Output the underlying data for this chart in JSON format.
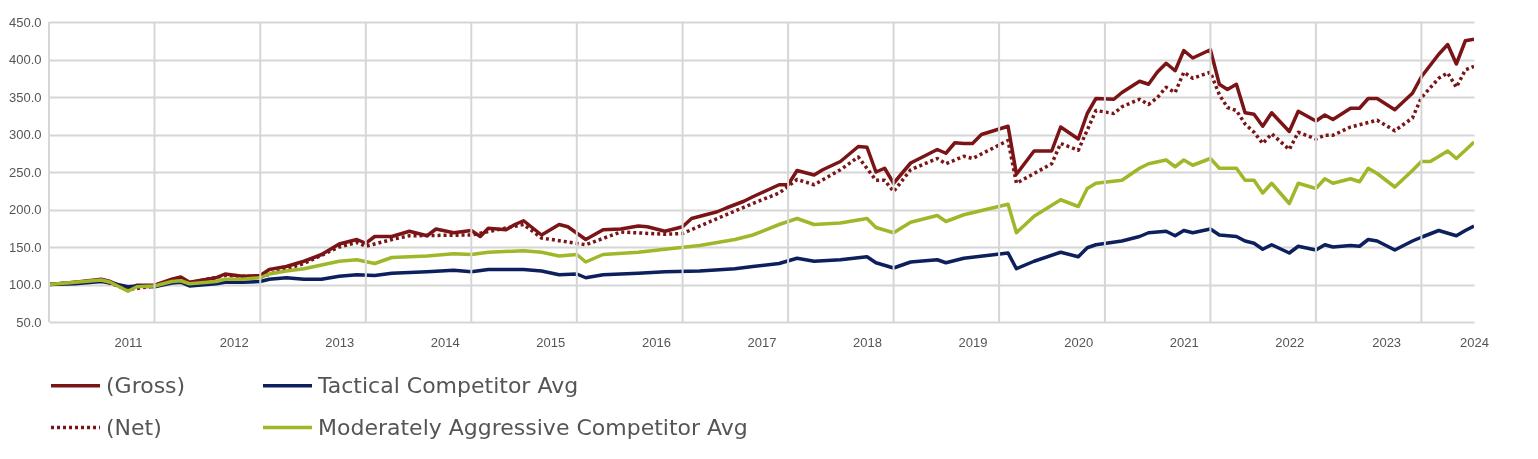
{
  "chart_data": {
    "type": "line",
    "xlim": [
      "2011-01",
      "2024-07"
    ],
    "ylim": [
      50,
      450
    ],
    "yticks": [
      {
        "value": 50,
        "label": "50.0"
      },
      {
        "value": 100,
        "label": "100.0"
      },
      {
        "value": 150,
        "label": "150.0"
      },
      {
        "value": 200,
        "label": "200.0"
      },
      {
        "value": 250,
        "label": "250.0"
      },
      {
        "value": 300,
        "label": "300.0"
      },
      {
        "value": 350,
        "label": "350.0"
      },
      {
        "value": 400,
        "label": "400.0"
      },
      {
        "value": 450,
        "label": "450.0"
      }
    ],
    "xticks": [
      {
        "value": "2011-01",
        "label": null
      },
      {
        "value": "2012-01",
        "label": null
      },
      {
        "value": "2013-01",
        "label": null
      },
      {
        "value": "2014-01",
        "label": null
      },
      {
        "value": "2015-01",
        "label": null
      },
      {
        "value": "2016-01",
        "label": null
      },
      {
        "value": "2017-01",
        "label": null
      },
      {
        "value": "2018-01",
        "label": null
      },
      {
        "value": "2019-01",
        "label": null
      },
      {
        "value": "2020-01",
        "label": null
      },
      {
        "value": "2021-01",
        "label": null
      },
      {
        "value": "2022-01",
        "label": null
      },
      {
        "value": "2023-01",
        "label": null
      },
      {
        "value": "2024-01",
        "label": null
      },
      {
        "value": "2011-10",
        "label": "2011"
      },
      {
        "value": "2012-10",
        "label": "2012"
      },
      {
        "value": "2013-10",
        "label": "2013"
      },
      {
        "value": "2014-10",
        "label": "2014"
      },
      {
        "value": "2015-10",
        "label": "2015"
      },
      {
        "value": "2016-10",
        "label": "2016"
      },
      {
        "value": "2017-10",
        "label": "2017"
      },
      {
        "value": "2018-10",
        "label": "2018"
      },
      {
        "value": "2019-10",
        "label": "2019"
      },
      {
        "value": "2020-10",
        "label": "2020"
      },
      {
        "value": "2021-10",
        "label": "2021"
      },
      {
        "value": "2022-10",
        "label": "2022"
      },
      {
        "value": "2023-09",
        "label": "2023"
      },
      {
        "value": "2024-07",
        "label": "2024"
      }
    ],
    "grid": true,
    "legend": "bottom",
    "marker": "none",
    "series": [
      {
        "name": "(Gross)",
        "color": "#7b1416",
        "line_style": "solid",
        "x": [
          "2011-01",
          "2011-04",
          "2011-07",
          "2011-08",
          "2011-10",
          "2011-11",
          "2012-01",
          "2012-03",
          "2012-04",
          "2012-05",
          "2012-08",
          "2012-09",
          "2012-11",
          "2013-01",
          "2013-02",
          "2013-04",
          "2013-06",
          "2013-08",
          "2013-10",
          "2013-12",
          "2014-01",
          "2014-02",
          "2014-04",
          "2014-06",
          "2014-08",
          "2014-09",
          "2014-11",
          "2015-01",
          "2015-02",
          "2015-03",
          "2015-05",
          "2015-06",
          "2015-07",
          "2015-09",
          "2015-11",
          "2015-12",
          "2016-02",
          "2016-04",
          "2016-06",
          "2016-08",
          "2016-09",
          "2016-11",
          "2017-01",
          "2017-02",
          "2017-05",
          "2017-06",
          "2017-08",
          "2017-09",
          "2017-12",
          "2018-01",
          "2018-02",
          "2018-04",
          "2018-05",
          "2018-07",
          "2018-09",
          "2018-10",
          "2018-11",
          "2018-12",
          "2019-01",
          "2019-03",
          "2019-04",
          "2019-06",
          "2019-07",
          "2019-08",
          "2019-09",
          "2019-10",
          "2019-11",
          "2020-02",
          "2020-03",
          "2020-05",
          "2020-07",
          "2020-08",
          "2020-10",
          "2020-11",
          "2020-12",
          "2021-02",
          "2021-03",
          "2021-05",
          "2021-06",
          "2021-07",
          "2021-08",
          "2021-09",
          "2021-10",
          "2021-11",
          "2022-01",
          "2022-02",
          "2022-03",
          "2022-04",
          "2022-05",
          "2022-06",
          "2022-07",
          "2022-08",
          "2022-10",
          "2022-11",
          "2023-01",
          "2023-02",
          "2023-03",
          "2023-05",
          "2023-06",
          "2023-07",
          "2023-08",
          "2023-10",
          "2023-12",
          "2024-01",
          "2024-03",
          "2024-04",
          "2024-05",
          "2024-06",
          "2024-07"
        ],
        "values": [
          100,
          103,
          107,
          104,
          94,
          99,
          99,
          107,
          110,
          103,
          109,
          114,
          111,
          112,
          120,
          124,
          131,
          140,
          154,
          160,
          155,
          164,
          164,
          171,
          165,
          174,
          169,
          172,
          164,
          175,
          173,
          180,
          185,
          166,
          180,
          177,
          160,
          173,
          174,
          178,
          177,
          171,
          177,
          188,
          197,
          202,
          211,
          217,
          233,
          233,
          252,
          246,
          253,
          264,
          284,
          283,
          250,
          255,
          235,
          262,
          268,
          280,
          275,
          289,
          288,
          288,
          300,
          311,
          247,
          278,
          278,
          310,
          294,
          328,
          348,
          347,
          356,
          371,
          367,
          383,
          395,
          385,
          412,
          402,
          413,
          367,
          360,
          367,
          329,
          327,
          311,
          329,
          304,
          331,
          318,
          326,
          320,
          335,
          335,
          348,
          348,
          333,
          355,
          377,
          407,
          420,
          394,
          425,
          427
        ]
      },
      {
        "name": "Tactical Competitor Avg",
        "color": "#0d1f5c",
        "line_style": "solid",
        "x": [
          "2011-01",
          "2011-04",
          "2011-07",
          "2011-08",
          "2011-10",
          "2011-11",
          "2012-01",
          "2012-03",
          "2012-04",
          "2012-05",
          "2012-08",
          "2012-09",
          "2012-11",
          "2013-01",
          "2013-02",
          "2013-04",
          "2013-06",
          "2013-08",
          "2013-10",
          "2013-12",
          "2014-02",
          "2014-04",
          "2014-08",
          "2014-11",
          "2015-01",
          "2015-03",
          "2015-07",
          "2015-09",
          "2015-11",
          "2016-01",
          "2016-02",
          "2016-04",
          "2016-08",
          "2016-11",
          "2017-03",
          "2017-07",
          "2017-09",
          "2017-12",
          "2018-02",
          "2018-04",
          "2018-07",
          "2018-10",
          "2018-11",
          "2019-01",
          "2019-03",
          "2019-06",
          "2019-07",
          "2019-09",
          "2020-02",
          "2020-03",
          "2020-05",
          "2020-08",
          "2020-10",
          "2020-11",
          "2020-12",
          "2021-03",
          "2021-05",
          "2021-06",
          "2021-08",
          "2021-09",
          "2021-10",
          "2021-11",
          "2022-01",
          "2022-02",
          "2022-04",
          "2022-05",
          "2022-06",
          "2022-07",
          "2022-08",
          "2022-10",
          "2022-11",
          "2023-01",
          "2023-02",
          "2023-03",
          "2023-05",
          "2023-06",
          "2023-07",
          "2023-08",
          "2023-10",
          "2023-12",
          "2024-01",
          "2024-03",
          "2024-05",
          "2024-06",
          "2024-07"
        ],
        "values": [
          100,
          101,
          104,
          102,
          97,
          98,
          97,
          102,
          103,
          98,
          101,
          103,
          103,
          104,
          107,
          109,
          107,
          107,
          111,
          113,
          112,
          115,
          117,
          119,
          117,
          120,
          120,
          118,
          113,
          114,
          109,
          113,
          115,
          117,
          118,
          121,
          124,
          128,
          135,
          131,
          133,
          137,
          129,
          122,
          130,
          133,
          129,
          135,
          142,
          121,
          131,
          143,
          137,
          149,
          153,
          158,
          164,
          169,
          171,
          165,
          172,
          169,
          174,
          166,
          164,
          158,
          155,
          147,
          153,
          142,
          151,
          146,
          153,
          150,
          152,
          151,
          160,
          158,
          146,
          158,
          163,
          172,
          165,
          172,
          178
        ]
      },
      {
        "name": "(Net)",
        "color": "#7b1416",
        "line_style": "dotted",
        "x": [
          "2011-01",
          "2011-07",
          "2011-10",
          "2012-01",
          "2012-04",
          "2012-05",
          "2012-09",
          "2013-01",
          "2013-06",
          "2013-10",
          "2013-12",
          "2014-01",
          "2014-04",
          "2014-06",
          "2015-01",
          "2015-07",
          "2015-09",
          "2016-02",
          "2016-06",
          "2016-11",
          "2017-01",
          "2017-05",
          "2017-09",
          "2017-12",
          "2018-02",
          "2018-04",
          "2018-07",
          "2018-09",
          "2018-11",
          "2018-12",
          "2019-01",
          "2019-03",
          "2019-06",
          "2019-07",
          "2019-09",
          "2019-10",
          "2020-02",
          "2020-03",
          "2020-07",
          "2020-08",
          "2020-10",
          "2020-12",
          "2021-02",
          "2021-03",
          "2021-05",
          "2021-06",
          "2021-07",
          "2021-08",
          "2021-09",
          "2021-10",
          "2021-11",
          "2022-01",
          "2022-02",
          "2022-03",
          "2022-04",
          "2022-05",
          "2022-06",
          "2022-07",
          "2022-08",
          "2022-10",
          "2022-11",
          "2023-01",
          "2023-02",
          "2023-03",
          "2023-05",
          "2023-07",
          "2023-08",
          "2023-10",
          "2023-12",
          "2024-01",
          "2024-03",
          "2024-04",
          "2024-05",
          "2024-06",
          "2024-07"
        ],
        "values": [
          100,
          106,
          93,
          98,
          108,
          102,
          112,
          110,
          128,
          150,
          156,
          151,
          160,
          165,
          166,
          180,
          162,
          153,
          170,
          167,
          168,
          188,
          208,
          222,
          240,
          233,
          253,
          270,
          239,
          239,
          224,
          253,
          268,
          261,
          271,
          268,
          292,
          235,
          261,
          288,
          279,
          332,
          328,
          337,
          347,
          340,
          349,
          363,
          356,
          383,
          375,
          383,
          353,
          336,
          332,
          314,
          303,
          288,
          301,
          280,
          303,
          294,
          299,
          299,
          310,
          316,
          319,
          305,
          322,
          349,
          375,
          382,
          363,
          386,
          391
        ]
      },
      {
        "name": "Moderately Aggressive Competitor Avg",
        "color": "#9fb82a",
        "line_style": "solid",
        "x": [
          "2011-01",
          "2011-04",
          "2011-07",
          "2011-08",
          "2011-10",
          "2011-11",
          "2012-01",
          "2012-03",
          "2012-04",
          "2012-05",
          "2012-08",
          "2012-09",
          "2012-11",
          "2013-01",
          "2013-02",
          "2013-04",
          "2013-06",
          "2013-08",
          "2013-10",
          "2013-12",
          "2014-02",
          "2014-04",
          "2014-08",
          "2014-11",
          "2015-01",
          "2015-03",
          "2015-07",
          "2015-09",
          "2015-11",
          "2016-01",
          "2016-02",
          "2016-04",
          "2016-08",
          "2016-11",
          "2017-03",
          "2017-07",
          "2017-09",
          "2017-12",
          "2018-02",
          "2018-04",
          "2018-07",
          "2018-10",
          "2018-11",
          "2019-01",
          "2019-03",
          "2019-06",
          "2019-07",
          "2019-09",
          "2020-02",
          "2020-03",
          "2020-05",
          "2020-08",
          "2020-10",
          "2020-11",
          "2020-12",
          "2021-03",
          "2021-05",
          "2021-06",
          "2021-08",
          "2021-09",
          "2021-10",
          "2021-11",
          "2022-01",
          "2022-02",
          "2022-04",
          "2022-05",
          "2022-06",
          "2022-07",
          "2022-08",
          "2022-10",
          "2022-11",
          "2023-01",
          "2023-02",
          "2023-03",
          "2023-05",
          "2023-06",
          "2023-07",
          "2023-08",
          "2023-10",
          "2023-12",
          "2024-01",
          "2024-02",
          "2024-04",
          "2024-05",
          "2024-06",
          "2024-07"
        ],
        "values": [
          100,
          103,
          106,
          103,
          91,
          97,
          98,
          104,
          105,
          101,
          104,
          107,
          107,
          109,
          114,
          118,
          121,
          126,
          131,
          133,
          128,
          136,
          138,
          141,
          140,
          143,
          145,
          143,
          138,
          140,
          130,
          140,
          143,
          147,
          152,
          160,
          166,
          180,
          188,
          180,
          182,
          188,
          176,
          169,
          183,
          192,
          184,
          193,
          207,
          169,
          191,
          213,
          204,
          228,
          235,
          239,
          255,
          261,
          266,
          257,
          266,
          259,
          268,
          255,
          255,
          239,
          239,
          222,
          235,
          208,
          235,
          228,
          241,
          235,
          241,
          237,
          255,
          248,
          230,
          252,
          264,
          264,
          278,
          268,
          279,
          290
        ]
      }
    ]
  }
}
